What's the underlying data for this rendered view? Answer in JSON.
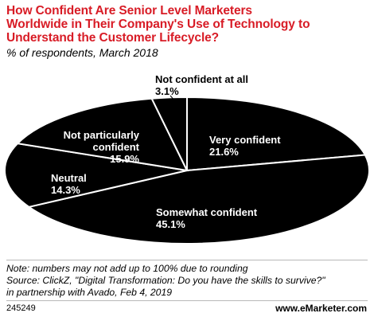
{
  "header": {
    "title_lines": [
      "How Confident Are Senior Level Marketers",
      "Worldwide in Their Company's Use of Technology to",
      "Understand the Customer Lifecycle?"
    ],
    "subtitle": "% of respondents, March 2018"
  },
  "chart_data": {
    "type": "pie",
    "title": "How Confident Are Senior Level Marketers Worldwide in Their Company's Use of Technology to Understand the Customer Lifecycle?",
    "subtitle": "% of respondents, March 2018",
    "unit": "%",
    "slices": [
      {
        "label": "Very confident",
        "value": 21.6,
        "display": "21.6%"
      },
      {
        "label": "Somewhat confident",
        "value": 45.1,
        "display": "45.1%"
      },
      {
        "label": "Neutral",
        "value": 14.3,
        "display": "14.3%"
      },
      {
        "label": "Not particularly confident",
        "value": 15.9,
        "display": "15.9%"
      },
      {
        "label": "Not confident at all",
        "value": 3.1,
        "display": "3.1%"
      }
    ],
    "colors": {
      "slice_fill": "#000000",
      "slice_border": "#ffffff",
      "label_text": "#ffffff"
    }
  },
  "footer": {
    "note": "Note: numbers may not add up to 100% due to rounding",
    "source_line1": "Source: ClickZ, \"Digital Transformation: Do you have the skills to survive?\"",
    "source_line2": "in partnership with Avado, Feb 4, 2019",
    "chart_id": "245249",
    "brand": "www.eMarketer.com"
  }
}
